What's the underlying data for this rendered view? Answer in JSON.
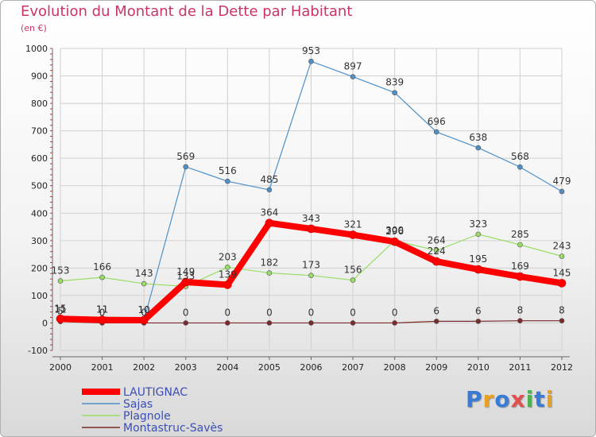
{
  "chart_data": {
    "type": "line",
    "title": "Evolution du Montant de la Dette par Habitant",
    "subtitle": "(en €)",
    "categories": [
      "2000",
      "2001",
      "2002",
      "2003",
      "2004",
      "2005",
      "2006",
      "2007",
      "2008",
      "2009",
      "2010",
      "2011",
      "2012"
    ],
    "ylim": [
      -100,
      1000
    ],
    "yticks": [
      -100,
      0,
      100,
      200,
      300,
      400,
      500,
      600,
      700,
      800,
      900,
      1000
    ],
    "grid": true,
    "legend_position": "bottom-left",
    "series": [
      {
        "name": "LAUTIGNAC",
        "color": "#ff0000",
        "values": [
          15,
          11,
          10,
          149,
          139,
          364,
          343,
          321,
          296,
          224,
          195,
          169,
          145
        ]
      },
      {
        "name": "Sajas",
        "color": "#4f90c8",
        "values": [
          11,
          11,
          10,
          569,
          516,
          485,
          953,
          897,
          839,
          696,
          638,
          568,
          479
        ]
      },
      {
        "name": "Plagnole",
        "color": "#99dd66",
        "values": [
          153,
          166,
          143,
          133,
          203,
          182,
          173,
          156,
          300,
          264,
          323,
          285,
          243
        ]
      },
      {
        "name": "Montastruc-Savès",
        "color": "#7a2a2a",
        "values": [
          5,
          0,
          0,
          0,
          0,
          0,
          0,
          0,
          0,
          6,
          6,
          8,
          8
        ]
      }
    ]
  },
  "logo": {
    "letters": [
      "P",
      "r",
      "o",
      "x",
      "i",
      "t",
      "i"
    ],
    "colors": [
      "#3a7bd5",
      "#e8a020",
      "#3a7bd5",
      "#e05050",
      "#50b050",
      "#3a7bd5",
      "#e8a020"
    ]
  }
}
